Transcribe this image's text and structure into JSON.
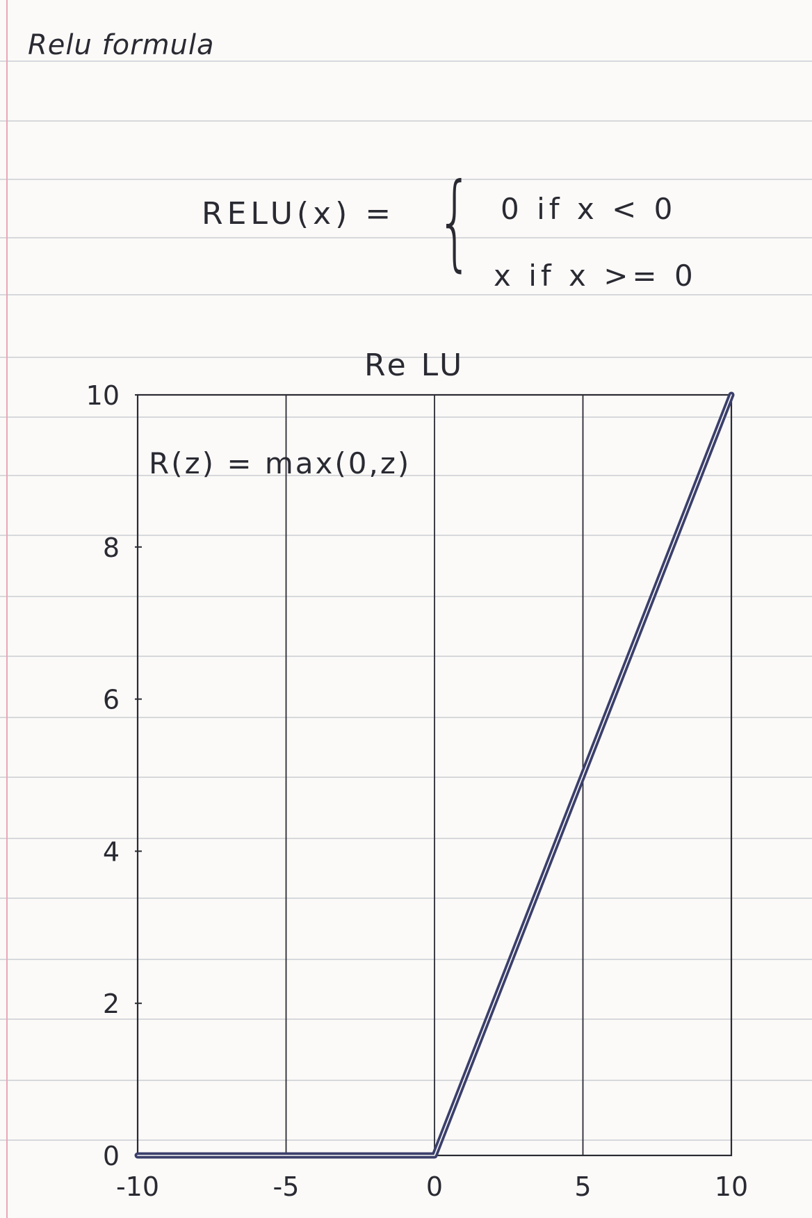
{
  "page": {
    "heading": "Relu formula"
  },
  "formula": {
    "lhs": "RELU(x) =",
    "brace": "{",
    "cases": [
      "0  if  x < 0",
      "x  if  x >= 0"
    ]
  },
  "colors": {
    "paper": "#fbfaf8",
    "rule_line": "#c9ccd3",
    "margin_line": "#e8a7b6",
    "ink": "#2a2a33",
    "plot_line": "#3b3f6b"
  },
  "chart_data": {
    "type": "line",
    "title": "Re LU",
    "annotation": "R(z) = max(0,z)",
    "xlabel": "",
    "ylabel": "",
    "xlim": [
      -10,
      10
    ],
    "ylim": [
      0,
      10
    ],
    "x_ticks": [
      -10,
      -5,
      0,
      5,
      10
    ],
    "x_tick_labels": [
      "-10",
      "-5",
      "0",
      "5",
      "10"
    ],
    "y_ticks": [
      0,
      2,
      4,
      6,
      8,
      10
    ],
    "y_tick_labels": [
      "0",
      "2",
      "4",
      "6",
      "8",
      "10"
    ],
    "grid": "vertical lines at x ticks",
    "series": [
      {
        "x": [
          -10,
          0,
          10
        ],
        "y": [
          0,
          0,
          10
        ]
      }
    ]
  }
}
